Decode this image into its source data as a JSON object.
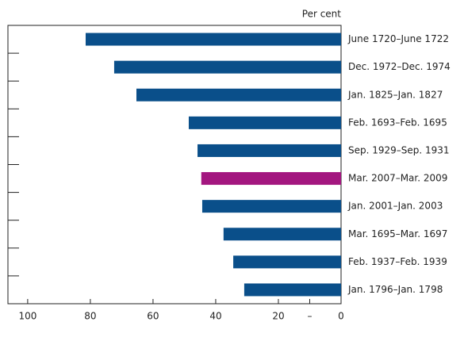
{
  "chart_data": {
    "type": "bar",
    "orientation": "horizontal",
    "axis_label": "Per cent",
    "categories": [
      "June 1720–June 1722",
      "Dec. 1972–Dec. 1974",
      "Jan. 1825–Jan. 1827",
      "Feb. 1693–Feb. 1695",
      "Sep. 1929–Sep. 1931",
      "Mar. 2007–Mar. 2009",
      "Jan. 2001–Jan. 2003",
      "Mar. 1695–Mar. 1697",
      "Feb. 1937–Feb. 1939",
      "Jan. 1796–Jan. 1798"
    ],
    "values": [
      81.5,
      72.4,
      65.3,
      48.6,
      45.8,
      44.6,
      44.3,
      37.5,
      34.4,
      30.9
    ],
    "colors": [
      "#0a4f8a",
      "#0a4f8a",
      "#0a4f8a",
      "#0a4f8a",
      "#0a4f8a",
      "#a3167f",
      "#0a4f8a",
      "#0a4f8a",
      "#0a4f8a",
      "#0a4f8a"
    ],
    "xlim": [
      106.3,
      0
    ],
    "xticks": [
      100,
      80,
      60,
      40,
      20,
      {
        "value": 10,
        "label": "–"
      },
      0
    ]
  }
}
